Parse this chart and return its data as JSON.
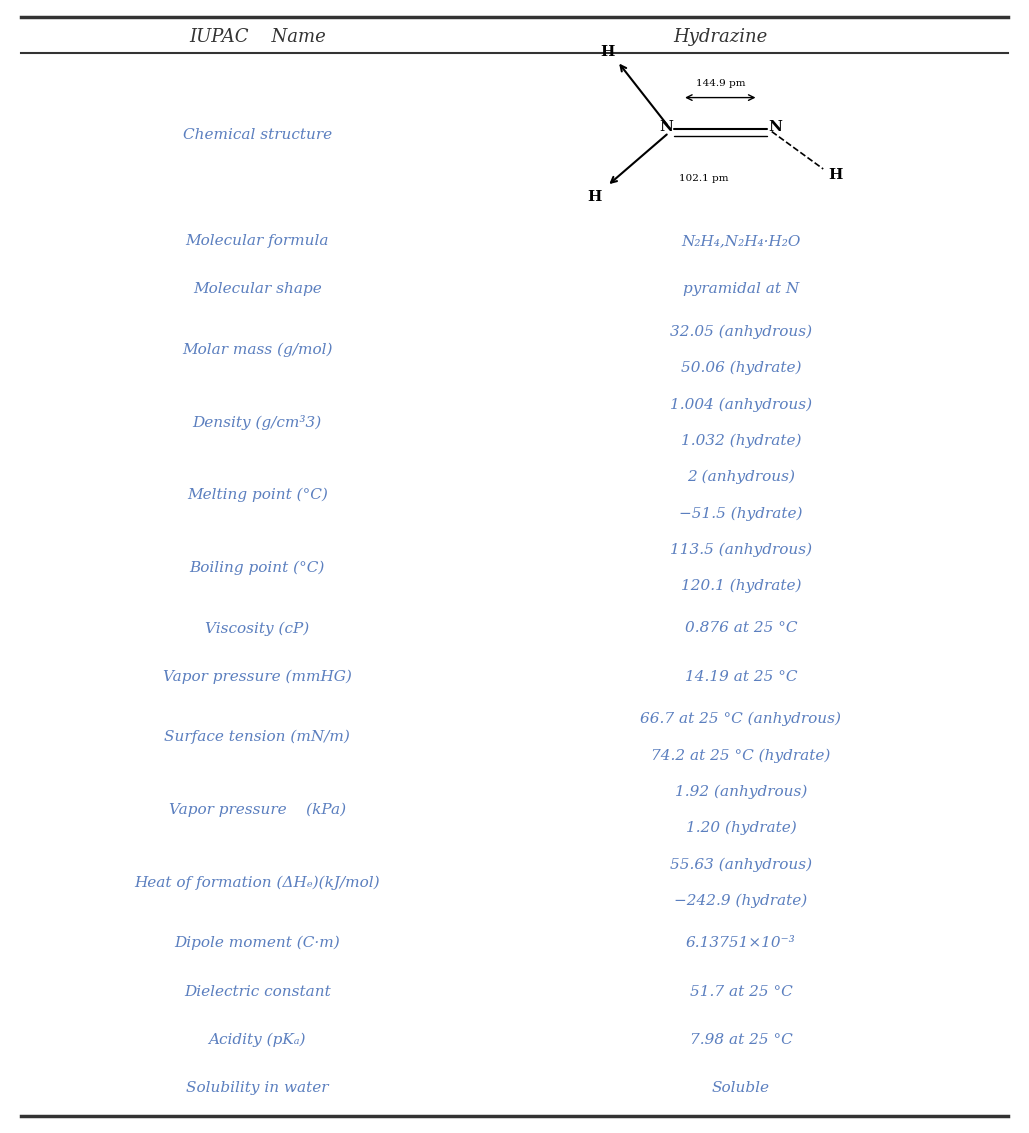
{
  "title_left": "IUPAC    Name",
  "title_right": "Hydrazine",
  "background_color": "#ffffff",
  "border_color": "#333333",
  "label_color": "#5b7fbf",
  "value_color": "#5b7fbf",
  "rows": [
    {
      "label": "Chemical structure",
      "values": [
        "__STRUCTURE__"
      ],
      "label_align": "center",
      "value_align": "center"
    },
    {
      "label": "Molecular formula",
      "values": [
        "N₂H₄,N₂H₄·H₂O"
      ],
      "label_align": "center",
      "value_align": "center"
    },
    {
      "label": "Molecular shape",
      "values": [
        "pyramidal at N"
      ],
      "label_align": "center",
      "value_align": "center"
    },
    {
      "label": "Molar mass (g/mol)",
      "values": [
        "32.05 (anhydrous)",
        "50.06 (hydrate)"
      ],
      "label_align": "center",
      "value_align": "center"
    },
    {
      "label": "Density (g/cm³3)",
      "values": [
        "1.004 (anhydrous)",
        "1.032 (hydrate)"
      ],
      "label_align": "center",
      "value_align": "center"
    },
    {
      "label": "Melting point (°C)",
      "values": [
        "2 (anhydrous)",
        "−51.5 (hydrate)"
      ],
      "label_align": "center",
      "value_align": "center"
    },
    {
      "label": "Boiling point (°C)",
      "values": [
        "113.5 (anhydrous)",
        "120.1 (hydrate)"
      ],
      "label_align": "center",
      "value_align": "center"
    },
    {
      "label": "Viscosity (cP)",
      "values": [
        "0.876 at 25 °C"
      ],
      "label_align": "center",
      "value_align": "center"
    },
    {
      "label": "Vapor pressure (mmHG)",
      "values": [
        "14.19 at 25 °C"
      ],
      "label_align": "center",
      "value_align": "center"
    },
    {
      "label": "Surface tension (mN/m)",
      "values": [
        "66.7 at 25 °C (anhydrous)",
        "74.2 at 25 °C (hydrate)"
      ],
      "label_align": "center",
      "value_align": "center"
    },
    {
      "label": "Vapor pressure    (kPa)",
      "values": [
        "1.92 (anhydrous)",
        "1.20 (hydrate)"
      ],
      "label_align": "center",
      "value_align": "center"
    },
    {
      "label": "Heat of formation (ΔHₑ)(kJ/mol)",
      "values": [
        "55.63 (anhydrous)",
        "−242.9 (hydrate)"
      ],
      "label_align": "center",
      "value_align": "center"
    },
    {
      "label": "Dipole moment (C·m)",
      "values": [
        "6.13751×10⁻³"
      ],
      "label_align": "center",
      "value_align": "center"
    },
    {
      "label": "Dielectric constant",
      "values": [
        "51.7 at 25 °C"
      ],
      "label_align": "center",
      "value_align": "center"
    },
    {
      "label": "Acidity (pΚₐ)",
      "values": [
        "7.98 at 25 °C"
      ],
      "label_align": "center",
      "value_align": "center"
    },
    {
      "label": "Solubility in water",
      "values": [
        "Soluble"
      ],
      "label_align": "center",
      "value_align": "center"
    }
  ]
}
